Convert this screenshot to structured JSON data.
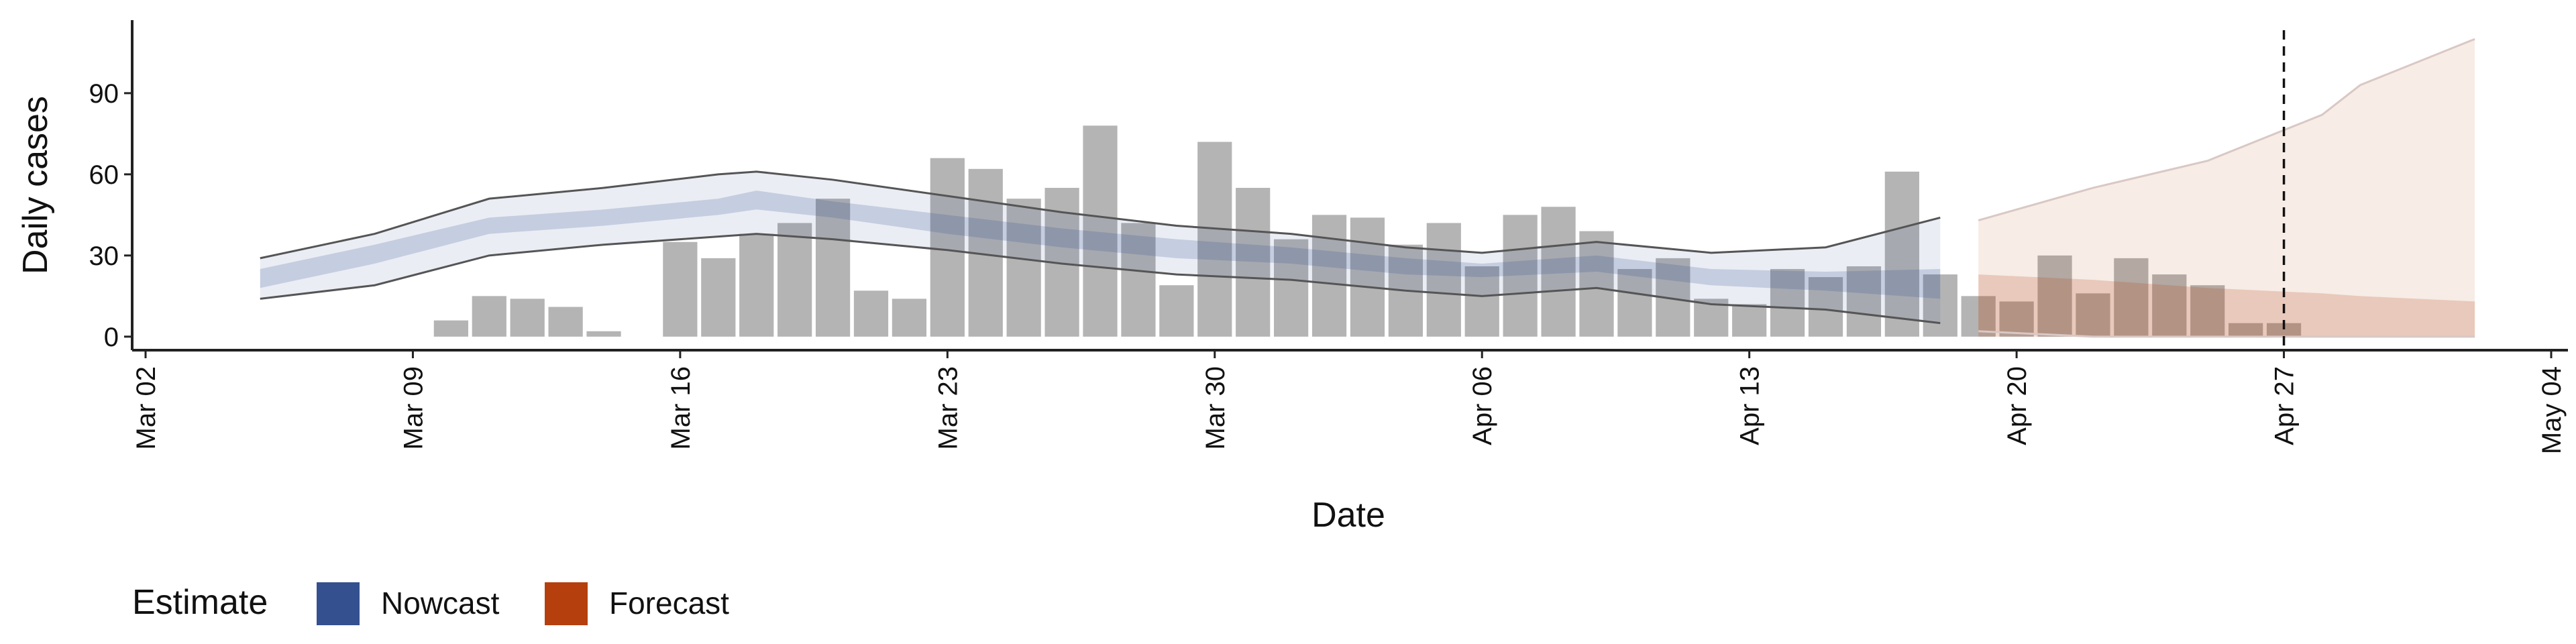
{
  "chart_data": {
    "type": "bar",
    "x_label": "Date",
    "y_label": "Daily cases",
    "x": [
      "Mar 10",
      "Mar 11",
      "Mar 12",
      "Mar 13",
      "Mar 14",
      "Mar 15",
      "Mar 16",
      "Mar 17",
      "Mar 18",
      "Mar 19",
      "Mar 20",
      "Mar 21",
      "Mar 22",
      "Mar 23",
      "Mar 24",
      "Mar 25",
      "Mar 26",
      "Mar 27",
      "Mar 28",
      "Mar 29",
      "Mar 30",
      "Mar 31",
      "Apr 01",
      "Apr 02",
      "Apr 03",
      "Apr 04",
      "Apr 05",
      "Apr 06",
      "Apr 07",
      "Apr 08",
      "Apr 09",
      "Apr 10",
      "Apr 11",
      "Apr 12",
      "Apr 13",
      "Apr 14",
      "Apr 15",
      "Apr 16",
      "Apr 17",
      "Apr 18",
      "Apr 19",
      "Apr 20",
      "Apr 21",
      "Apr 22",
      "Apr 23",
      "Apr 24",
      "Apr 25",
      "Apr 26",
      "Apr 27"
    ],
    "values": [
      6,
      15,
      14,
      11,
      2,
      0,
      35,
      29,
      38,
      42,
      51,
      17,
      14,
      66,
      62,
      51,
      55,
      78,
      42,
      19,
      72,
      55,
      36,
      45,
      44,
      34,
      42,
      26,
      45,
      48,
      39,
      25,
      29,
      14,
      12,
      25,
      22,
      26,
      61,
      23,
      15,
      13,
      30,
      16,
      29,
      23,
      19,
      5,
      5
    ],
    "color": "#b4b4b4",
    "xlim": [
      "Mar 02",
      "May 04"
    ],
    "xticks": [
      "Mar 02",
      "Mar 09",
      "Mar 16",
      "Mar 23",
      "Mar 30",
      "Apr 06",
      "Apr 13",
      "Apr 20",
      "Apr 27",
      "May 04"
    ],
    "ylim": [
      -5,
      117
    ],
    "yticks": [
      0,
      30,
      60,
      90
    ],
    "vline": "Apr 27",
    "legend_title": "Estimate",
    "series": [
      {
        "name": "Nowcast",
        "type": "band",
        "color": "#34508f",
        "line_color": "#555555",
        "x": [
          "Mar 05",
          "Mar 08",
          "Mar 11",
          "Mar 14",
          "Mar 17",
          "Mar 18",
          "Mar 20",
          "Mar 23",
          "Mar 26",
          "Mar 29",
          "Apr 01",
          "Apr 04",
          "Apr 06",
          "Apr 09",
          "Apr 12",
          "Apr 15",
          "Apr 18"
        ],
        "upper90": [
          29,
          38,
          51,
          55,
          60,
          61,
          58,
          52,
          46,
          41,
          38,
          33,
          31,
          35,
          31,
          33,
          44
        ],
        "lower90": [
          14,
          19,
          30,
          34,
          37,
          38,
          36,
          32,
          27,
          23,
          21,
          17,
          15,
          18,
          12,
          10,
          5
        ],
        "upper50": [
          25,
          34,
          44,
          47,
          51,
          54,
          50,
          45,
          40,
          36,
          33,
          29,
          27,
          30,
          25,
          24,
          25
        ],
        "lower50": [
          18,
          27,
          38,
          41,
          45,
          47,
          44,
          38,
          33,
          29,
          27,
          23,
          22,
          24,
          19,
          17,
          14
        ]
      },
      {
        "name": "Forecast",
        "type": "band",
        "color": "#b5400e",
        "line_color": "#d9c8c4",
        "x": [
          "Apr 19",
          "Apr 22",
          "Apr 25",
          "Apr 28",
          "Apr 29",
          "May 02"
        ],
        "upper90": [
          43,
          55,
          65,
          82,
          93,
          110
        ],
        "lower90": [
          2,
          0,
          0,
          0,
          0,
          0
        ],
        "upper50": [
          23,
          21,
          18,
          16,
          15,
          13
        ],
        "lower50": [
          0,
          0,
          0,
          0,
          0,
          0
        ]
      }
    ]
  }
}
